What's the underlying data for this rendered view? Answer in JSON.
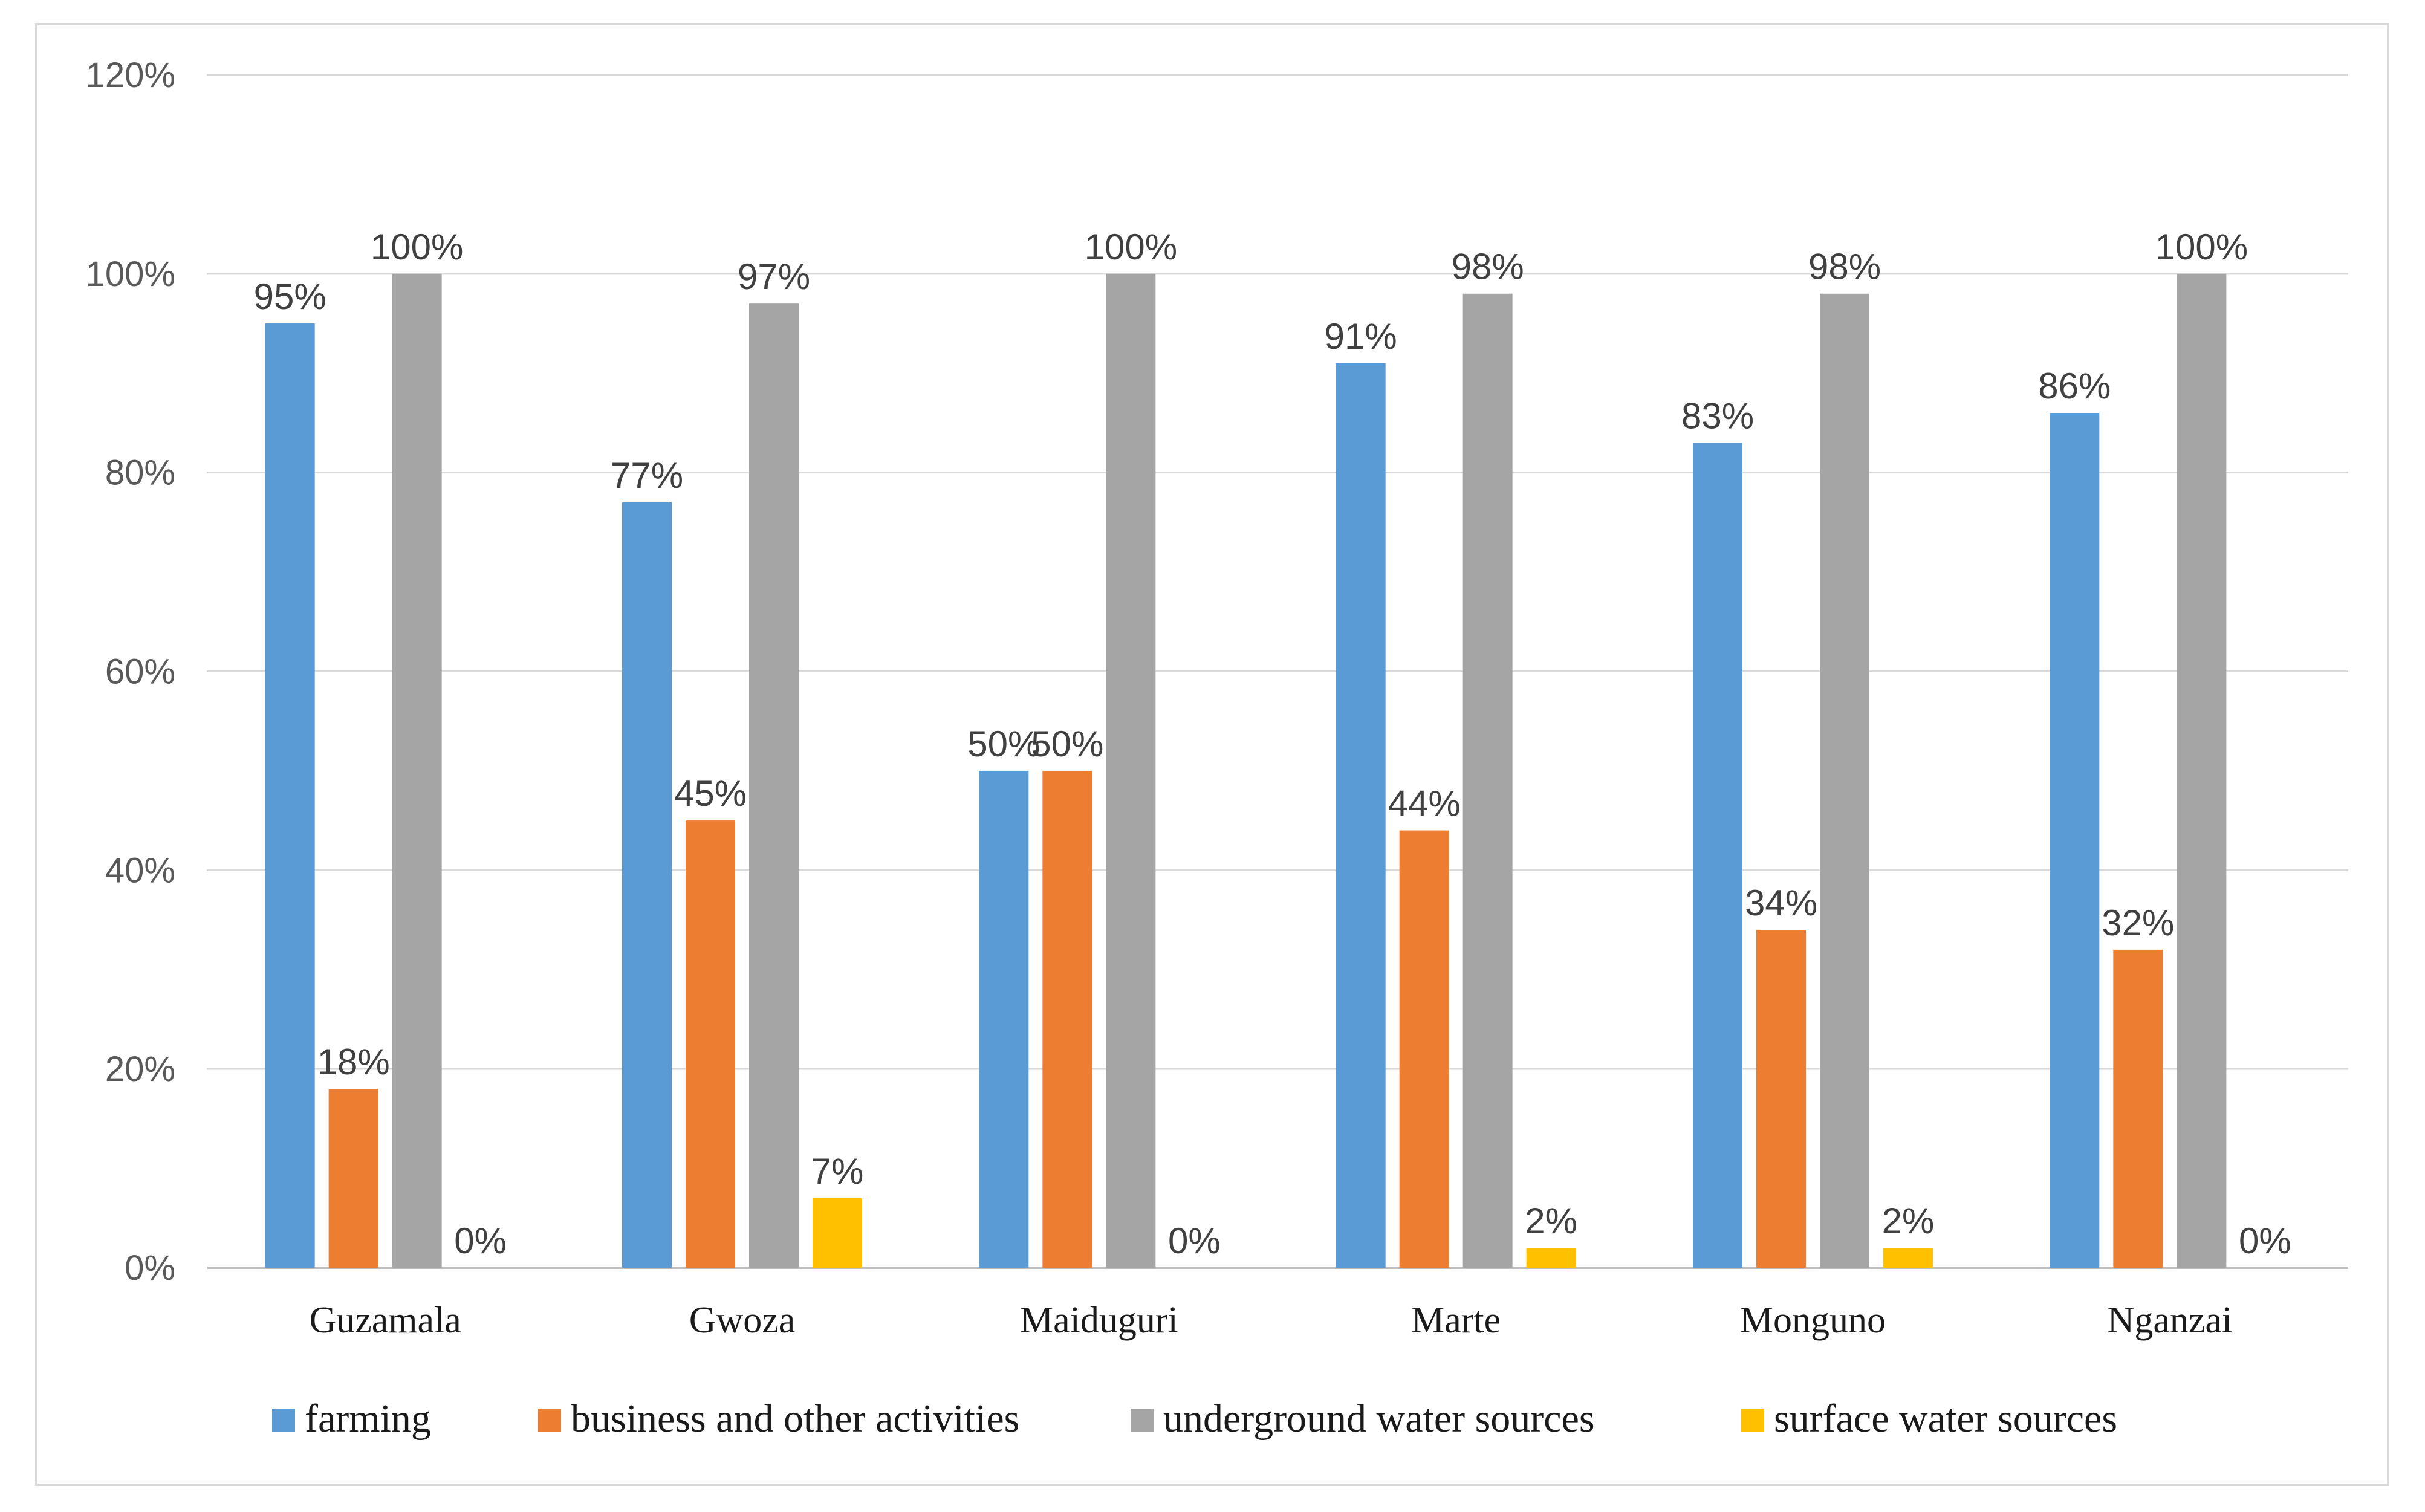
{
  "chart_data": {
    "type": "bar",
    "title": "",
    "xlabel": "",
    "ylabel": "",
    "ylim": [
      0,
      120
    ],
    "yticks": [
      0,
      20,
      40,
      60,
      80,
      100,
      120
    ],
    "ytick_labels": [
      "0%",
      "20%",
      "40%",
      "60%",
      "80%",
      "100%",
      "120%"
    ],
    "grid": true,
    "legend_position": "bottom",
    "categories": [
      "Guzamala",
      "Gwoza",
      "Maiduguri",
      "Marte",
      "Monguno",
      "Nganzai"
    ],
    "series": [
      {
        "name": "farming",
        "color": "#5b9bd5",
        "values": [
          95,
          77,
          50,
          91,
          83,
          86
        ]
      },
      {
        "name": "business and other activities",
        "color": "#ed7d31",
        "values": [
          18,
          45,
          50,
          44,
          34,
          32
        ]
      },
      {
        "name": "underground water sources",
        "color": "#a5a5a5",
        "values": [
          100,
          97,
          100,
          98,
          98,
          100
        ]
      },
      {
        "name": "surface water sources",
        "color": "#ffc000",
        "values": [
          0,
          7,
          0,
          2,
          2,
          0
        ]
      }
    ],
    "data_labels": [
      [
        "95%",
        "77%",
        "50%",
        "91%",
        "83%",
        "86%"
      ],
      [
        "18%",
        "45%",
        "50%",
        "44%",
        "34%",
        "32%"
      ],
      [
        "100%",
        "97%",
        "100%",
        "98%",
        "98%",
        "100%"
      ],
      [
        "0%",
        "7%",
        "0%",
        "2%",
        "2%",
        "0%"
      ]
    ]
  }
}
